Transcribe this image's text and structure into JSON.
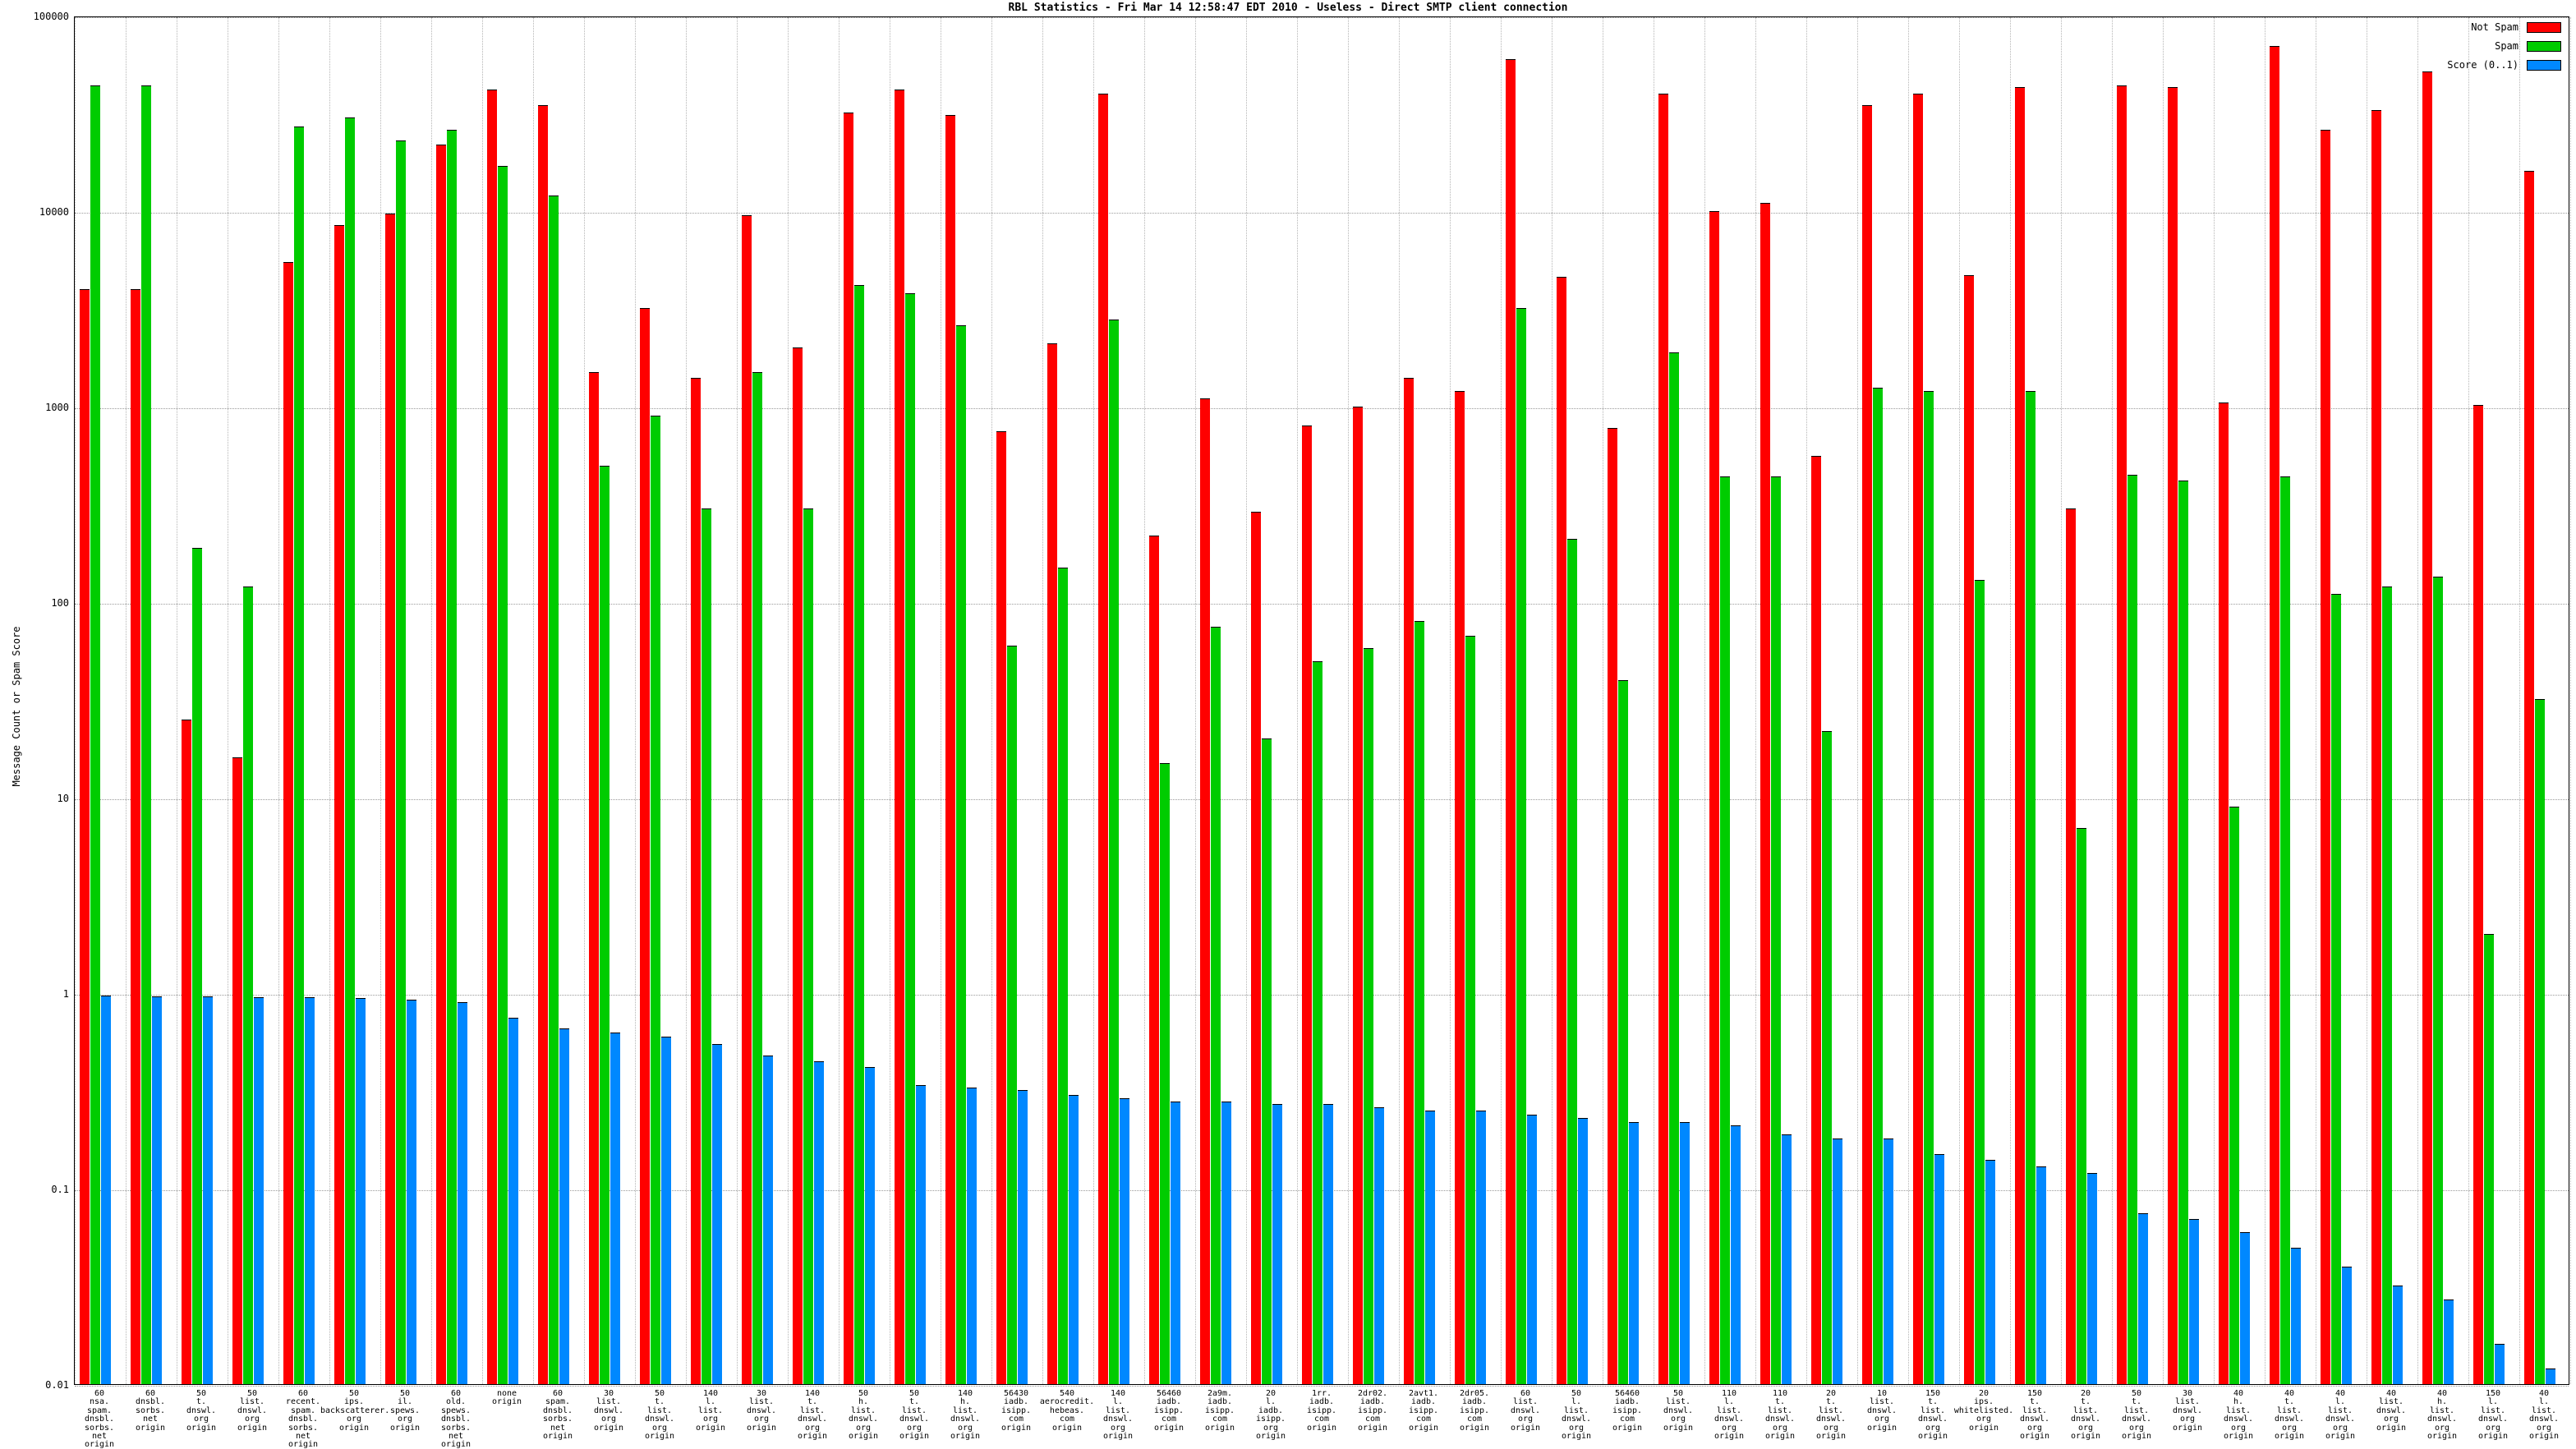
{
  "title": "RBL Statistics - Fri Mar 14 12:58:47 EDT 2010 - Useless - Direct SMTP client connection",
  "y_axis_label": "Message Count or Spam Score",
  "legend": [
    {
      "label": "Not Spam",
      "color": "#ff0000"
    },
    {
      "label": "Spam",
      "color": "#00cc00"
    },
    {
      "label": "Score (0..1)",
      "color": "#0088ff"
    }
  ],
  "chart_data": {
    "type": "bar",
    "y_scale": "log",
    "ylim": [
      0.01,
      100000
    ],
    "y_ticks": [
      "100000",
      "10000",
      "1000",
      "100",
      "10",
      "1",
      "0.1",
      "0.01"
    ],
    "grid": true,
    "legend_position": "top-right",
    "title": "RBL Statistics - Fri Mar 14 12:58:47 EDT 2010 - Useless - Direct SMTP client connection",
    "xlabel": "",
    "ylabel": "Message Count or Spam Score",
    "categories": [
      "60\nnsa.\nspam.\ndnsbl.\nsorbs.\nnet\norigin",
      "60\ndnsbl.\nsorbs.\nnet\norigin",
      "50\nt.\ndnswl.\norg\norigin",
      "50\nlist.\ndnswl.\norg\norigin",
      "60\nrecent.\nspam.\ndnsbl.\nsorbs.\nnet\norigin",
      "50\nips.\nbackscatterer.\norg\norigin",
      "50\nil.\nspews.\norg\norigin",
      "60\nold.\nspews.\ndnsbl.\nsorbs.\nnet\norigin",
      "none\norigin",
      "60\nspam.\ndnsbl.\nsorbs.\nnet\norigin",
      "30\nlist.\ndnswl.\norg\norigin",
      "50\nt.\nlist.\ndnswl.\norg\norigin",
      "140\nl.\nlist.\norg\norigin",
      "30\nlist.\ndnswl.\norg\norigin",
      "140\nt.\nlist.\ndnswl.\norg\norigin",
      "50\nh.\nlist.\ndnswl.\norg\norigin",
      "50\nt.\nlist.\ndnswl.\norg\norigin",
      "140\nh.\nlist.\ndnswl.\norg\norigin",
      "56430\niadb.\nisipp.\ncom\norigin",
      "540\naerocredit.\nhebeas.\ncom\norigin",
      "140\nl.\nlist.\ndnswl.\norg\norigin",
      "56460\niadb.\nisipp.\ncom\norigin",
      "2a9m.\niadb.\nisipp.\ncom\norigin",
      "20\nl.\niadb.\nisipp.\norg\norigin",
      "1rr.\niadb.\nisipp.\ncom\norigin",
      "2dr02.\niadb.\nisipp.\ncom\norigin",
      "2avt1.\niadb.\nisipp.\ncom\norigin",
      "2dr05.\niadb.\nisipp.\ncom\norigin",
      "60\nlist.\ndnswl.\norg\norigin",
      "50\nl.\nlist.\ndnswl.\norg\norigin",
      "56460\niadb.\nisipp.\ncom\norigin",
      "50\nlist.\ndnswl.\norg\norigin",
      "110\nl.\nlist.\ndnswl.\norg\norigin",
      "110\nt.\nlist.\ndnswl.\norg\norigin",
      "20\nt.\nlist.\ndnswl.\norg\norigin",
      "10\nlist.\ndnswl.\norg\norigin",
      "150\nt.\nlist.\ndnswl.\norg\norigin",
      "20\nips.\nwhitelisted.\norg\norigin",
      "150\nt.\nlist.\ndnswl.\norg\norigin",
      "20\nt.\nlist.\ndnswl.\norg\norigin",
      "50\nt.\nlist.\ndnswl.\norg\norigin",
      "30\nlist.\ndnswl.\norg\norigin",
      "40\nh.\nlist.\ndnswl.\norg\norigin",
      "40\nt.\nlist.\ndnswl.\norg\norigin",
      "40\nl.\nlist.\ndnswl.\norg\norigin",
      "40\nlist.\ndnswl.\norg\norigin",
      "40\nh.\nlist.\ndnswl.\norg\norigin",
      "150\nl.\nlist.\ndnswl.\norg\norigin",
      "40\nl.\nlist.\ndnswl.\norg\norigin"
    ],
    "series": [
      {
        "name": "Not Spam",
        "color": "#ff0000",
        "values": [
          4000,
          4000,
          25,
          16,
          5500,
          8500,
          9700,
          22000,
          42000,
          35000,
          1500,
          3200,
          1400,
          9500,
          2000,
          32000,
          42000,
          31000,
          750,
          2100,
          40000,
          220,
          1100,
          290,
          800,
          1000,
          1400,
          1200,
          60000,
          4600,
          780,
          40000,
          10000,
          11000,
          560,
          35000,
          40000,
          4700,
          43000,
          300,
          44000,
          43000,
          1050,
          70000,
          26000,
          33000,
          52000,
          1020,
          16000
        ]
      },
      {
        "name": "Spam",
        "color": "#00cc00",
        "values": [
          44000,
          44000,
          190,
          120,
          27000,
          30000,
          23000,
          26000,
          17000,
          12000,
          500,
          900,
          300,
          1500,
          300,
          4200,
          3800,
          2600,
          60,
          150,
          2800,
          15,
          75,
          20,
          50,
          58,
          80,
          67,
          3200,
          210,
          40,
          1900,
          440,
          440,
          22,
          1250,
          1200,
          130,
          1200,
          7,
          450,
          420,
          9,
          440,
          110,
          120,
          135,
          2,
          32
        ]
      },
      {
        "name": "Score (0..1)",
        "color": "#0088ff",
        "values": [
          0.97,
          0.96,
          0.96,
          0.95,
          0.95,
          0.94,
          0.93,
          0.9,
          0.75,
          0.66,
          0.63,
          0.6,
          0.55,
          0.48,
          0.45,
          0.42,
          0.34,
          0.33,
          0.32,
          0.3,
          0.29,
          0.28,
          0.28,
          0.27,
          0.27,
          0.26,
          0.25,
          0.25,
          0.24,
          0.23,
          0.22,
          0.22,
          0.21,
          0.19,
          0.18,
          0.18,
          0.15,
          0.14,
          0.13,
          0.12,
          0.075,
          0.07,
          0.06,
          0.05,
          0.04,
          0.032,
          0.027,
          0.016,
          0.012
        ]
      }
    ]
  }
}
